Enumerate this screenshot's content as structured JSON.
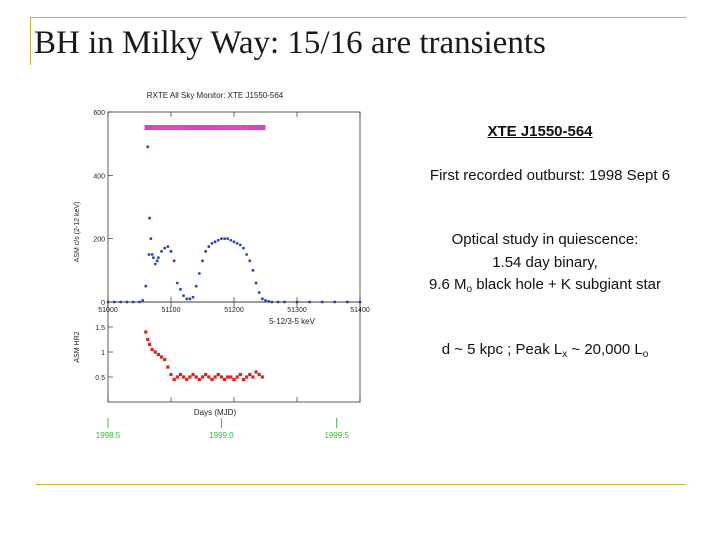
{
  "slide": {
    "title": "BH in Milky Way: 15/16 are transients",
    "object_name": "XTE J1550-564",
    "outburst": "First recorded outburst: 1998 Sept 6",
    "optical_line1": "Optical study in quiescence:",
    "optical_line2": "1.54 day binary,",
    "optical_line3_pre": "9.6 M",
    "optical_line3_sub": "o",
    "optical_line3_post": " black hole + K subgiant star",
    "dist_pre": "d ~ 5 kpc ;  Peak L",
    "dist_sub": "x",
    "dist_mid": " ~ 20,000 L",
    "dist_sub2": "o"
  },
  "colors": {
    "accent_rule": "#c9b33a",
    "marker_top": "#e040c0",
    "asm_rate": "#2840d0",
    "hardness": "#e02020",
    "year_marker": "#38b838"
  },
  "figure": {
    "title": "RXTE All Sky Monitor: XTE J1550-564",
    "ylabel_top": "ASM c/s (2-12 keV)",
    "ylabel_bottom": "ASM HR2",
    "band_label": "5-12/3-5 keV",
    "xlabel": "Days (MJD)",
    "year_labels": [
      "1998.5",
      "1999.0",
      "1999.5"
    ],
    "year_mjd": [
      51000,
      51180,
      51363
    ]
  },
  "chart_data": [
    {
      "type": "scatter",
      "title": "RXTE All Sky Monitor: XTE J1550-564",
      "ylabel": "ASM c/s (2-12 keV)",
      "xlim": [
        51000,
        51400
      ],
      "ylim": [
        0,
        600
      ],
      "xticks": [
        51000,
        51100,
        51200,
        51300,
        51400
      ],
      "yticks": [
        0,
        200,
        400,
        600
      ],
      "xtick_labels": [
        "51000",
        "51100",
        "51200",
        "51300",
        "51400"
      ],
      "ytick_labels": [
        "0",
        "200",
        "400",
        "600"
      ],
      "series": [
        {
          "x": [
            51000,
            51010,
            51020,
            51030,
            51040,
            51050,
            51055,
            51060,
            51063,
            51065,
            51066,
            51068,
            51070,
            51072,
            51075,
            51078,
            51080,
            51085,
            51090,
            51095,
            51100,
            51105,
            51110,
            51115,
            51120,
            51125,
            51130,
            51135,
            51140,
            51145,
            51150,
            51155,
            51160,
            51165,
            51170,
            51175,
            51180,
            51185,
            51190,
            51195,
            51200,
            51205,
            51210,
            51215,
            51220,
            51225,
            51230,
            51235,
            51240,
            51245,
            51250,
            51255,
            51260,
            51270,
            51280,
            51300,
            51320,
            51340,
            51360,
            51380,
            51400
          ],
          "y": [
            0,
            0,
            0,
            0,
            0,
            0,
            5,
            50,
            490,
            150,
            265,
            200,
            150,
            140,
            120,
            130,
            140,
            160,
            170,
            175,
            160,
            130,
            60,
            40,
            20,
            10,
            10,
            15,
            50,
            90,
            130,
            160,
            175,
            185,
            190,
            195,
            200,
            200,
            200,
            195,
            190,
            185,
            180,
            170,
            150,
            130,
            100,
            60,
            30,
            10,
            5,
            2,
            0,
            0,
            0,
            0,
            0,
            0,
            0,
            0,
            0
          ]
        }
      ]
    },
    {
      "type": "scatter",
      "ylabel": "ASM HR2",
      "xlabel": "Days (MJD)",
      "xlim": [
        51000,
        51400
      ],
      "ylim": [
        0,
        2
      ],
      "yticks": [
        0.5,
        1,
        1.5
      ],
      "ytick_labels": [
        "0.5",
        "1",
        "1.5"
      ],
      "annotation": "5-12/3-5 keV",
      "series": [
        {
          "x": [
            51060,
            51063,
            51066,
            51070,
            51075,
            51080,
            51085,
            51090,
            51095,
            51100,
            51105,
            51110,
            51115,
            51120,
            51125,
            51130,
            51135,
            51140,
            51145,
            51150,
            51155,
            51160,
            51165,
            51170,
            51175,
            51180,
            51185,
            51190,
            51195,
            51200,
            51205,
            51210,
            51215,
            51220,
            51225,
            51230,
            51235,
            51240,
            51245
          ],
          "y": [
            1.4,
            1.25,
            1.15,
            1.05,
            1.0,
            0.95,
            0.9,
            0.85,
            0.7,
            0.55,
            0.45,
            0.5,
            0.55,
            0.5,
            0.45,
            0.5,
            0.55,
            0.5,
            0.45,
            0.5,
            0.55,
            0.5,
            0.45,
            0.5,
            0.55,
            0.5,
            0.45,
            0.5,
            0.5,
            0.45,
            0.5,
            0.55,
            0.45,
            0.5,
            0.55,
            0.5,
            0.6,
            0.55,
            0.5
          ]
        }
      ]
    }
  ]
}
